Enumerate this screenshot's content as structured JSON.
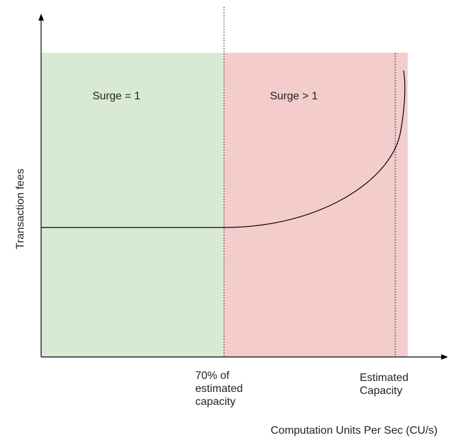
{
  "diagram": {
    "regions": {
      "left": {
        "label": "Surge = 1",
        "color": "#d9ead3"
      },
      "right": {
        "label": "Surge > 1",
        "color": "#f4cccc"
      }
    },
    "x_axis": {
      "label": "Computation Units Per Sec (CU/s)",
      "markers": [
        {
          "label_lines": [
            "70% of",
            "estimated",
            "capacity"
          ]
        },
        {
          "label_lines": [
            "Estimated",
            "Capacity"
          ]
        }
      ]
    },
    "y_axis": {
      "label": "Transaction fees"
    },
    "curve": {
      "description_color": "#000000"
    }
  }
}
